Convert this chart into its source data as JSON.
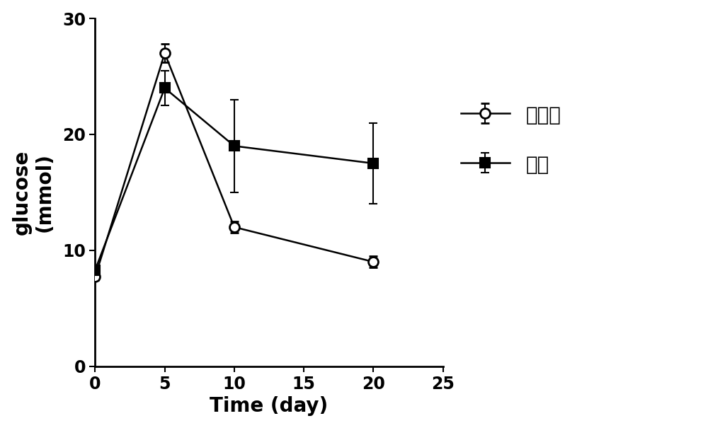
{
  "series1_name": "组合物",
  "series2_name": "空白",
  "x": [
    0,
    5,
    10,
    20
  ],
  "series1_y": [
    7.7,
    27.0,
    12.0,
    9.0
  ],
  "series1_yerr": [
    0.3,
    0.8,
    0.5,
    0.5
  ],
  "series2_y": [
    8.3,
    24.0,
    19.0,
    17.5
  ],
  "series2_yerr": [
    0.3,
    1.5,
    4.0,
    3.5
  ],
  "xlabel": "Time (day)",
  "ylabel_line1": "glucose",
  "ylabel_line2": "(mmol)",
  "xlim": [
    0,
    25
  ],
  "ylim": [
    0,
    30
  ],
  "xticks": [
    0,
    5,
    10,
    15,
    20,
    25
  ],
  "yticks": [
    0,
    10,
    20,
    30
  ],
  "line_color": "#000000",
  "background_color": "#ffffff",
  "label_fontsize": 20,
  "tick_fontsize": 17,
  "legend_fontsize": 20,
  "linewidth": 1.8,
  "marker_size": 10,
  "capsize": 4
}
